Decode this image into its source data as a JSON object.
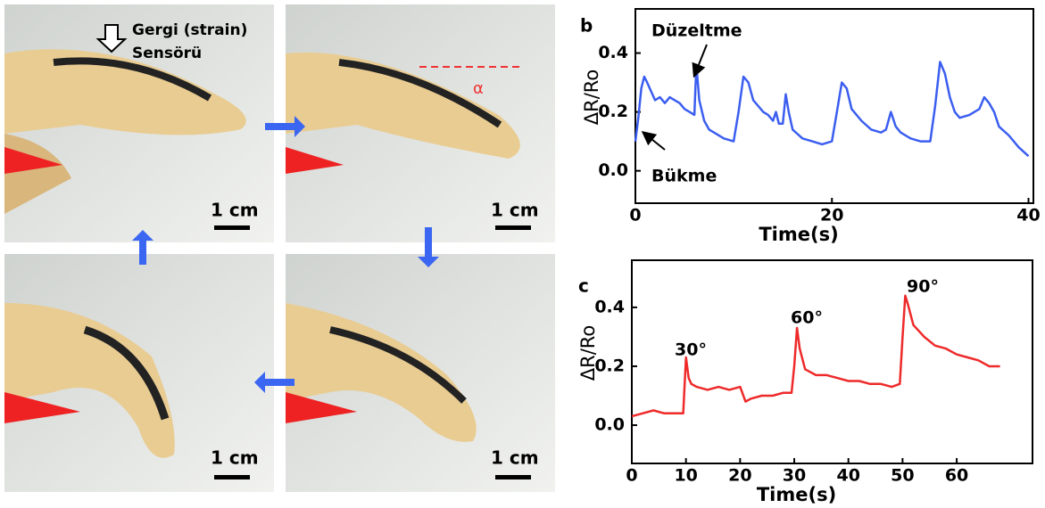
{
  "figure": {
    "sensor_label": [
      "Gergi (strain)",
      "Sensörü"
    ],
    "angle_label": "α",
    "scale_labels": [
      "1 cm",
      "1 cm",
      "1 cm",
      "1 cm"
    ]
  },
  "chart_data": [
    {
      "type": "line",
      "panel_label": "b",
      "x_label": "Time(s)",
      "y_label": "ΔR/Ro",
      "x": [
        0,
        0.3,
        0.6,
        0.9,
        1.2,
        1.6,
        2,
        2.5,
        3,
        3.5,
        4,
        4.5,
        5,
        5.5,
        6,
        6.2,
        6.5,
        7,
        7.5,
        8,
        9,
        10,
        10.5,
        11,
        11.5,
        12,
        12.5,
        13,
        13.5,
        14,
        14.3,
        14.6,
        15,
        15.3,
        15.6,
        16,
        17,
        18,
        19,
        20,
        20.5,
        21,
        21.5,
        22,
        23,
        24,
        25,
        25.5,
        26,
        26.5,
        27,
        28,
        29,
        30,
        30.5,
        31,
        31.5,
        32,
        32.5,
        33,
        34,
        35,
        35.5,
        36,
        36.5,
        37,
        38,
        39,
        40
      ],
      "series": [
        {
          "color": "#3b5ef0",
          "values": [
            0.1,
            0.18,
            0.28,
            0.32,
            0.3,
            0.27,
            0.24,
            0.25,
            0.23,
            0.25,
            0.24,
            0.23,
            0.21,
            0.2,
            0.19,
            0.36,
            0.24,
            0.17,
            0.14,
            0.13,
            0.11,
            0.1,
            0.2,
            0.32,
            0.3,
            0.24,
            0.22,
            0.2,
            0.19,
            0.17,
            0.2,
            0.16,
            0.16,
            0.26,
            0.2,
            0.14,
            0.11,
            0.1,
            0.09,
            0.1,
            0.2,
            0.3,
            0.28,
            0.21,
            0.17,
            0.14,
            0.13,
            0.14,
            0.2,
            0.15,
            0.13,
            0.11,
            0.1,
            0.1,
            0.22,
            0.37,
            0.33,
            0.25,
            0.2,
            0.18,
            0.19,
            0.21,
            0.25,
            0.23,
            0.2,
            0.15,
            0.12,
            0.08,
            0.05
          ]
        }
      ],
      "xlim": [
        0,
        40.5
      ],
      "ylim": [
        -0.11,
        0.55
      ],
      "xticks": [
        0,
        20,
        40
      ],
      "yticks": [
        {
          "value": 0,
          "label": "0.0"
        },
        0.2,
        0.4
      ],
      "annotations": [
        "Düzeltme",
        "Bükme"
      ]
    },
    {
      "type": "line",
      "panel_label": "c",
      "x_label": "Time(s)",
      "y_label": "ΔR/Ro",
      "x": [
        0,
        2,
        4,
        6,
        8,
        9.5,
        10,
        10.5,
        11,
        12,
        14,
        16,
        18,
        20,
        21,
        22,
        24,
        26,
        28,
        29.5,
        30,
        30.5,
        31,
        32,
        34,
        36,
        38,
        40,
        42,
        44,
        46,
        48,
        49.5,
        50,
        50.5,
        51,
        52,
        53,
        54,
        56,
        58,
        60,
        62,
        64,
        66,
        68
      ],
      "series": [
        {
          "color": "#ee2a2a",
          "values": [
            0.03,
            0.04,
            0.05,
            0.04,
            0.04,
            0.04,
            0.23,
            0.16,
            0.14,
            0.13,
            0.12,
            0.13,
            0.12,
            0.13,
            0.08,
            0.09,
            0.1,
            0.1,
            0.11,
            0.11,
            0.2,
            0.33,
            0.26,
            0.19,
            0.17,
            0.17,
            0.16,
            0.15,
            0.15,
            0.14,
            0.14,
            0.13,
            0.14,
            0.3,
            0.44,
            0.41,
            0.34,
            0.32,
            0.3,
            0.27,
            0.26,
            0.24,
            0.23,
            0.22,
            0.2,
            0.2
          ]
        }
      ],
      "xlim": [
        0,
        74
      ],
      "ylim": [
        -0.13,
        0.56
      ],
      "xticks": [
        0,
        10,
        20,
        30,
        40,
        50,
        60
      ],
      "yticks": [
        {
          "value": 0,
          "label": "0.0"
        },
        0.2,
        0.4
      ],
      "annotations": [
        "30°",
        "60°",
        "90°"
      ]
    }
  ]
}
